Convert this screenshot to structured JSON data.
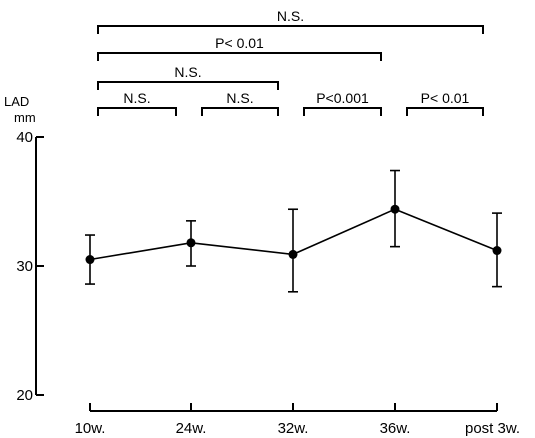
{
  "chart_data": {
    "type": "line",
    "ylabel": "LAD",
    "yunit": "mm",
    "ylim": [
      20,
      40
    ],
    "yticks": [
      "20",
      "30",
      "40"
    ],
    "categories": [
      "10w.",
      "24w.",
      "32w.",
      "36w.",
      "post 3w."
    ],
    "series": [
      {
        "values": [
          30.5,
          31.8,
          30.9,
          34.4,
          31.2
        ],
        "error_upper": [
          32.4,
          33.5,
          34.4,
          37.4,
          34.1
        ],
        "error_lower": [
          28.6,
          30.0,
          28.0,
          31.5,
          28.4
        ]
      }
    ],
    "grid": false,
    "significance": [
      {
        "from": 0,
        "to": 4,
        "label": "N.S."
      },
      {
        "from": 0,
        "to": 3,
        "label": "P< 0.01"
      },
      {
        "from": 0,
        "to": 2,
        "label": "N.S."
      },
      {
        "from": 0,
        "to": 1,
        "label": "N.S."
      },
      {
        "from": 1,
        "to": 2,
        "label": "N.S."
      },
      {
        "from": 2,
        "to": 3,
        "label": "P<0.001"
      },
      {
        "from": 3,
        "to": 4,
        "label": "P< 0.01"
      }
    ]
  }
}
